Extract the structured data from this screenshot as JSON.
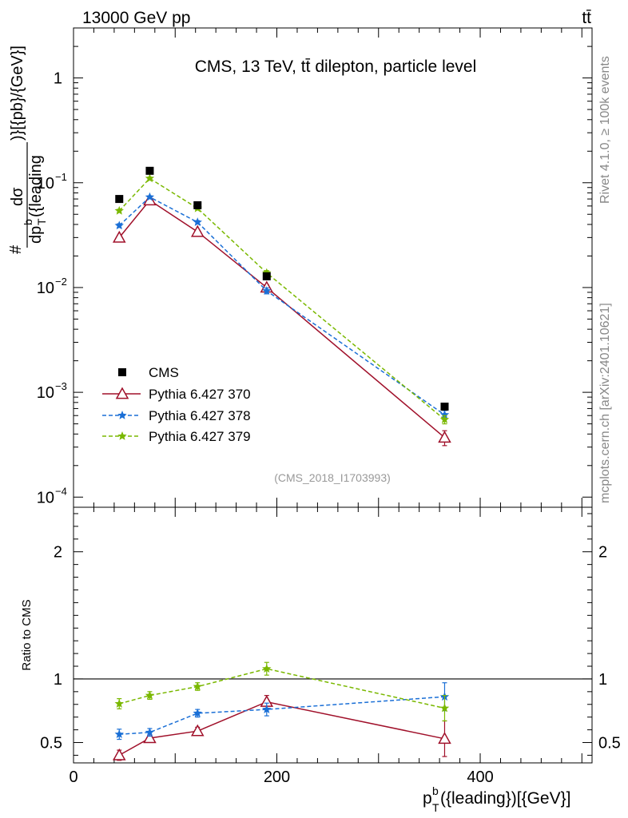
{
  "header": {
    "left": "13000 GeV pp",
    "right": "tt̄"
  },
  "side_text": {
    "rivet": "Rivet 4.1.0, ≥ 100k events",
    "mcplots": "mcplots.cern.ch [arXiv:2401.10621]"
  },
  "chart_data": [
    {
      "type": "scatter",
      "panel": "main",
      "title": "CMS, 13 TeV, tt̄ dilepton, particle level",
      "watermark": "(CMS_2018_I1703993)",
      "ylabel_parts": {
        "hash": "#",
        "num": "dσ",
        "den_main": "dp",
        "den_sup": "b",
        "den_sub": "T",
        "den_rest": "({leading",
        "suffix": ")}[{pb}/{GeV}]"
      },
      "yscale": "log",
      "ylim": [
        8e-05,
        3
      ],
      "xlim": [
        0,
        510
      ],
      "yticks": [
        {
          "value": 1,
          "base": "1",
          "exp": ""
        },
        {
          "value": 0.1,
          "base": "10",
          "exp": "−1"
        },
        {
          "value": 0.01,
          "base": "10",
          "exp": "−2"
        },
        {
          "value": 0.001,
          "base": "10",
          "exp": "−3"
        },
        {
          "value": 0.0001,
          "base": "10",
          "exp": "−4"
        }
      ],
      "legend_position": "lower-left",
      "series": [
        {
          "name": "CMS",
          "color": "#000000",
          "marker": "square",
          "line": "none",
          "x": [
            45,
            75,
            122,
            190,
            365
          ],
          "y": [
            0.07,
            0.13,
            0.061,
            0.0128,
            0.00073
          ],
          "err": [
            0.002,
            0.004,
            0.0015,
            0.0005,
            3e-05
          ]
        },
        {
          "name": "Pythia 6.427 370",
          "color": "#a0102a",
          "marker": "triangle-open",
          "line": "solid",
          "x": [
            45,
            75,
            122,
            190,
            365
          ],
          "y": [
            0.03,
            0.068,
            0.034,
            0.01,
            0.00037
          ],
          "err": [
            0.0012,
            0.002,
            0.0012,
            0.0006,
            6e-05
          ]
        },
        {
          "name": "Pythia 6.427 378",
          "color": "#1a6fd6",
          "marker": "star",
          "line": "dashed",
          "x": [
            45,
            75,
            122,
            190,
            365
          ],
          "y": [
            0.039,
            0.073,
            0.042,
            0.0093,
            0.00061
          ],
          "err": [
            0.0016,
            0.002,
            0.0015,
            0.0006,
            6e-05
          ]
        },
        {
          "name": "Pythia 6.427 379",
          "color": "#7ab800",
          "marker": "star",
          "line": "dashed",
          "x": [
            45,
            75,
            122,
            190,
            365
          ],
          "y": [
            0.054,
            0.11,
            0.057,
            0.0138,
            0.00055
          ],
          "err": [
            0.0018,
            0.003,
            0.0018,
            0.0007,
            5e-05
          ]
        }
      ]
    },
    {
      "type": "line",
      "panel": "ratio",
      "ylabel": "Ratio to CMS",
      "xlabel_parts": {
        "main": "p",
        "sup": "b",
        "sub": "T",
        "rest": "({leading})[{GeV}]"
      },
      "yscale": "linear",
      "ylim": [
        0.34,
        2.35
      ],
      "xlim": [
        0,
        510
      ],
      "yticks": [
        0.5,
        1,
        2
      ],
      "ytick_labels": [
        "0.5",
        "1",
        "2"
      ],
      "xticks": [
        0,
        200,
        400
      ],
      "xtick_labels": [
        "0",
        "200",
        "400"
      ],
      "reference_line": 1,
      "series": [
        {
          "name": "Pythia 6.427 370",
          "color": "#a0102a",
          "marker": "triangle-open",
          "line": "solid",
          "x": [
            45,
            75,
            122,
            190,
            365
          ],
          "y": [
            0.4,
            0.535,
            0.59,
            0.82,
            0.53
          ],
          "err": [
            0.04,
            0.025,
            0.03,
            0.05,
            0.14
          ]
        },
        {
          "name": "Pythia 6.427 378",
          "color": "#1a6fd6",
          "marker": "star",
          "line": "dashed",
          "x": [
            45,
            75,
            122,
            190,
            365
          ],
          "y": [
            0.565,
            0.58,
            0.73,
            0.76,
            0.86
          ],
          "err": [
            0.04,
            0.03,
            0.03,
            0.05,
            0.11
          ]
        },
        {
          "name": "Pythia 6.427 379",
          "color": "#7ab800",
          "marker": "star",
          "line": "dashed",
          "x": [
            45,
            75,
            122,
            190,
            365
          ],
          "y": [
            0.805,
            0.87,
            0.94,
            1.08,
            0.77
          ],
          "err": [
            0.04,
            0.03,
            0.03,
            0.05,
            0.1
          ]
        }
      ]
    }
  ]
}
